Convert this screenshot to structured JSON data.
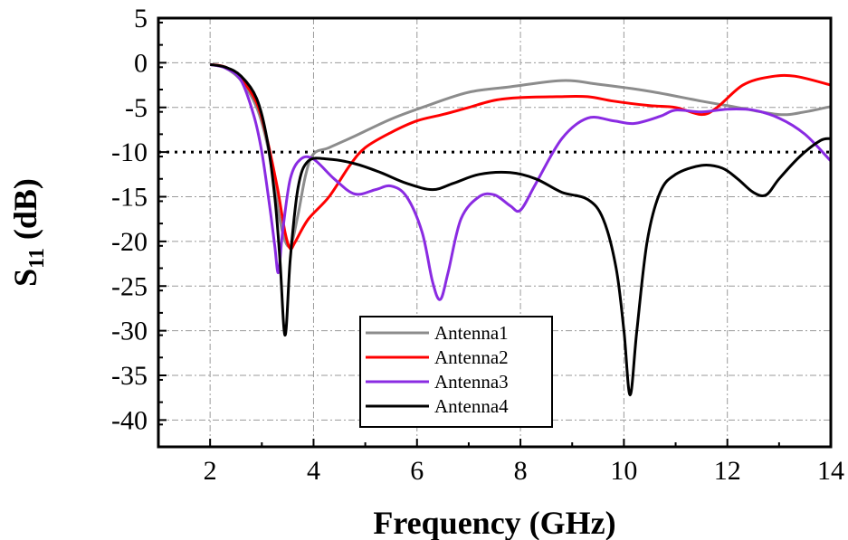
{
  "chart_data": {
    "type": "line",
    "title": "",
    "xlabel": "Frequency (GHz)",
    "ylabel_main": "S",
    "ylabel_sub": "11",
    "ylabel_suffix": " (dB)",
    "xlim": [
      1,
      14
    ],
    "ylim": [
      -43,
      5
    ],
    "xticks": [
      2,
      4,
      6,
      8,
      10,
      12,
      14
    ],
    "yticks": [
      5,
      0,
      -5,
      -10,
      -15,
      -20,
      -25,
      -30,
      -35,
      -40
    ],
    "grid": true,
    "reference_line": {
      "y": -10,
      "style": "dotted"
    },
    "legend_position": "bottom-center",
    "series": [
      {
        "name": "Antenna1",
        "color": "#8c8c8c",
        "points": [
          [
            2.0,
            -0.2
          ],
          [
            2.3,
            -0.6
          ],
          [
            2.6,
            -2.0
          ],
          [
            2.9,
            -5.0
          ],
          [
            3.1,
            -9.0
          ],
          [
            3.25,
            -14.0
          ],
          [
            3.4,
            -19.0
          ],
          [
            3.55,
            -20.5
          ],
          [
            3.7,
            -17.0
          ],
          [
            3.85,
            -12.5
          ],
          [
            4.0,
            -10.2
          ],
          [
            4.3,
            -9.5
          ],
          [
            4.8,
            -8.2
          ],
          [
            5.5,
            -6.3
          ],
          [
            6.2,
            -4.8
          ],
          [
            7.0,
            -3.3
          ],
          [
            7.8,
            -2.7
          ],
          [
            8.8,
            -2.0
          ],
          [
            9.5,
            -2.4
          ],
          [
            10.5,
            -3.2
          ],
          [
            11.5,
            -4.3
          ],
          [
            12.2,
            -5.0
          ],
          [
            13.0,
            -5.8
          ],
          [
            13.5,
            -5.5
          ],
          [
            14.0,
            -4.9
          ]
        ]
      },
      {
        "name": "Antenna2",
        "color": "#ff0000",
        "points": [
          [
            2.0,
            -0.2
          ],
          [
            2.3,
            -0.5
          ],
          [
            2.6,
            -1.8
          ],
          [
            2.9,
            -4.5
          ],
          [
            3.1,
            -8.5
          ],
          [
            3.3,
            -14.0
          ],
          [
            3.45,
            -19.0
          ],
          [
            3.55,
            -20.8
          ],
          [
            3.65,
            -20.0
          ],
          [
            3.9,
            -17.5
          ],
          [
            4.3,
            -15.0
          ],
          [
            4.7,
            -11.5
          ],
          [
            5.0,
            -9.5
          ],
          [
            5.5,
            -7.8
          ],
          [
            6.0,
            -6.5
          ],
          [
            6.5,
            -5.8
          ],
          [
            7.0,
            -5.0
          ],
          [
            7.5,
            -4.2
          ],
          [
            8.0,
            -3.9
          ],
          [
            8.7,
            -3.8
          ],
          [
            9.3,
            -3.8
          ],
          [
            9.8,
            -4.3
          ],
          [
            10.5,
            -4.8
          ],
          [
            11.0,
            -5.0
          ],
          [
            11.5,
            -5.8
          ],
          [
            11.8,
            -5.0
          ],
          [
            12.3,
            -2.5
          ],
          [
            12.8,
            -1.6
          ],
          [
            13.3,
            -1.5
          ],
          [
            14.0,
            -2.5
          ]
        ]
      },
      {
        "name": "Antenna3",
        "color": "#8a2be2",
        "points": [
          [
            2.0,
            -0.2
          ],
          [
            2.3,
            -0.6
          ],
          [
            2.6,
            -2.0
          ],
          [
            2.85,
            -6.0
          ],
          [
            3.0,
            -10.0
          ],
          [
            3.15,
            -16.0
          ],
          [
            3.25,
            -20.5
          ],
          [
            3.32,
            -23.5
          ],
          [
            3.4,
            -19.0
          ],
          [
            3.55,
            -13.0
          ],
          [
            3.75,
            -10.8
          ],
          [
            4.0,
            -10.8
          ],
          [
            4.4,
            -13.0
          ],
          [
            4.8,
            -14.7
          ],
          [
            5.2,
            -14.2
          ],
          [
            5.5,
            -13.8
          ],
          [
            5.8,
            -15.0
          ],
          [
            6.1,
            -19.0
          ],
          [
            6.3,
            -24.5
          ],
          [
            6.45,
            -26.5
          ],
          [
            6.6,
            -23.5
          ],
          [
            6.85,
            -17.5
          ],
          [
            7.2,
            -15.0
          ],
          [
            7.5,
            -14.8
          ],
          [
            7.8,
            -16.0
          ],
          [
            8.0,
            -16.5
          ],
          [
            8.3,
            -13.5
          ],
          [
            8.8,
            -8.5
          ],
          [
            9.3,
            -6.2
          ],
          [
            9.8,
            -6.5
          ],
          [
            10.2,
            -6.8
          ],
          [
            10.7,
            -6.0
          ],
          [
            11.0,
            -5.3
          ],
          [
            11.5,
            -5.5
          ],
          [
            12.0,
            -5.2
          ],
          [
            12.5,
            -5.3
          ],
          [
            13.0,
            -6.2
          ],
          [
            13.5,
            -8.0
          ],
          [
            14.0,
            -11.0
          ]
        ]
      },
      {
        "name": "Antenna4",
        "color": "#000000",
        "points": [
          [
            2.0,
            -0.2
          ],
          [
            2.3,
            -0.5
          ],
          [
            2.6,
            -1.5
          ],
          [
            2.9,
            -4.0
          ],
          [
            3.1,
            -8.5
          ],
          [
            3.25,
            -15.0
          ],
          [
            3.35,
            -22.0
          ],
          [
            3.45,
            -30.5
          ],
          [
            3.55,
            -22.0
          ],
          [
            3.7,
            -14.0
          ],
          [
            3.9,
            -11.0
          ],
          [
            4.3,
            -10.8
          ],
          [
            4.8,
            -11.3
          ],
          [
            5.3,
            -12.3
          ],
          [
            5.8,
            -13.5
          ],
          [
            6.3,
            -14.2
          ],
          [
            6.7,
            -13.5
          ],
          [
            7.2,
            -12.5
          ],
          [
            7.8,
            -12.3
          ],
          [
            8.3,
            -13.0
          ],
          [
            8.8,
            -14.5
          ],
          [
            9.3,
            -15.3
          ],
          [
            9.6,
            -17.5
          ],
          [
            9.85,
            -23.0
          ],
          [
            10.0,
            -30.0
          ],
          [
            10.12,
            -37.2
          ],
          [
            10.25,
            -30.0
          ],
          [
            10.45,
            -20.0
          ],
          [
            10.7,
            -14.5
          ],
          [
            11.0,
            -12.5
          ],
          [
            11.5,
            -11.5
          ],
          [
            11.9,
            -11.8
          ],
          [
            12.2,
            -13.0
          ],
          [
            12.5,
            -14.5
          ],
          [
            12.75,
            -14.8
          ],
          [
            13.0,
            -13.0
          ],
          [
            13.4,
            -10.5
          ],
          [
            13.8,
            -8.7
          ],
          [
            14.0,
            -8.5
          ]
        ]
      }
    ]
  }
}
